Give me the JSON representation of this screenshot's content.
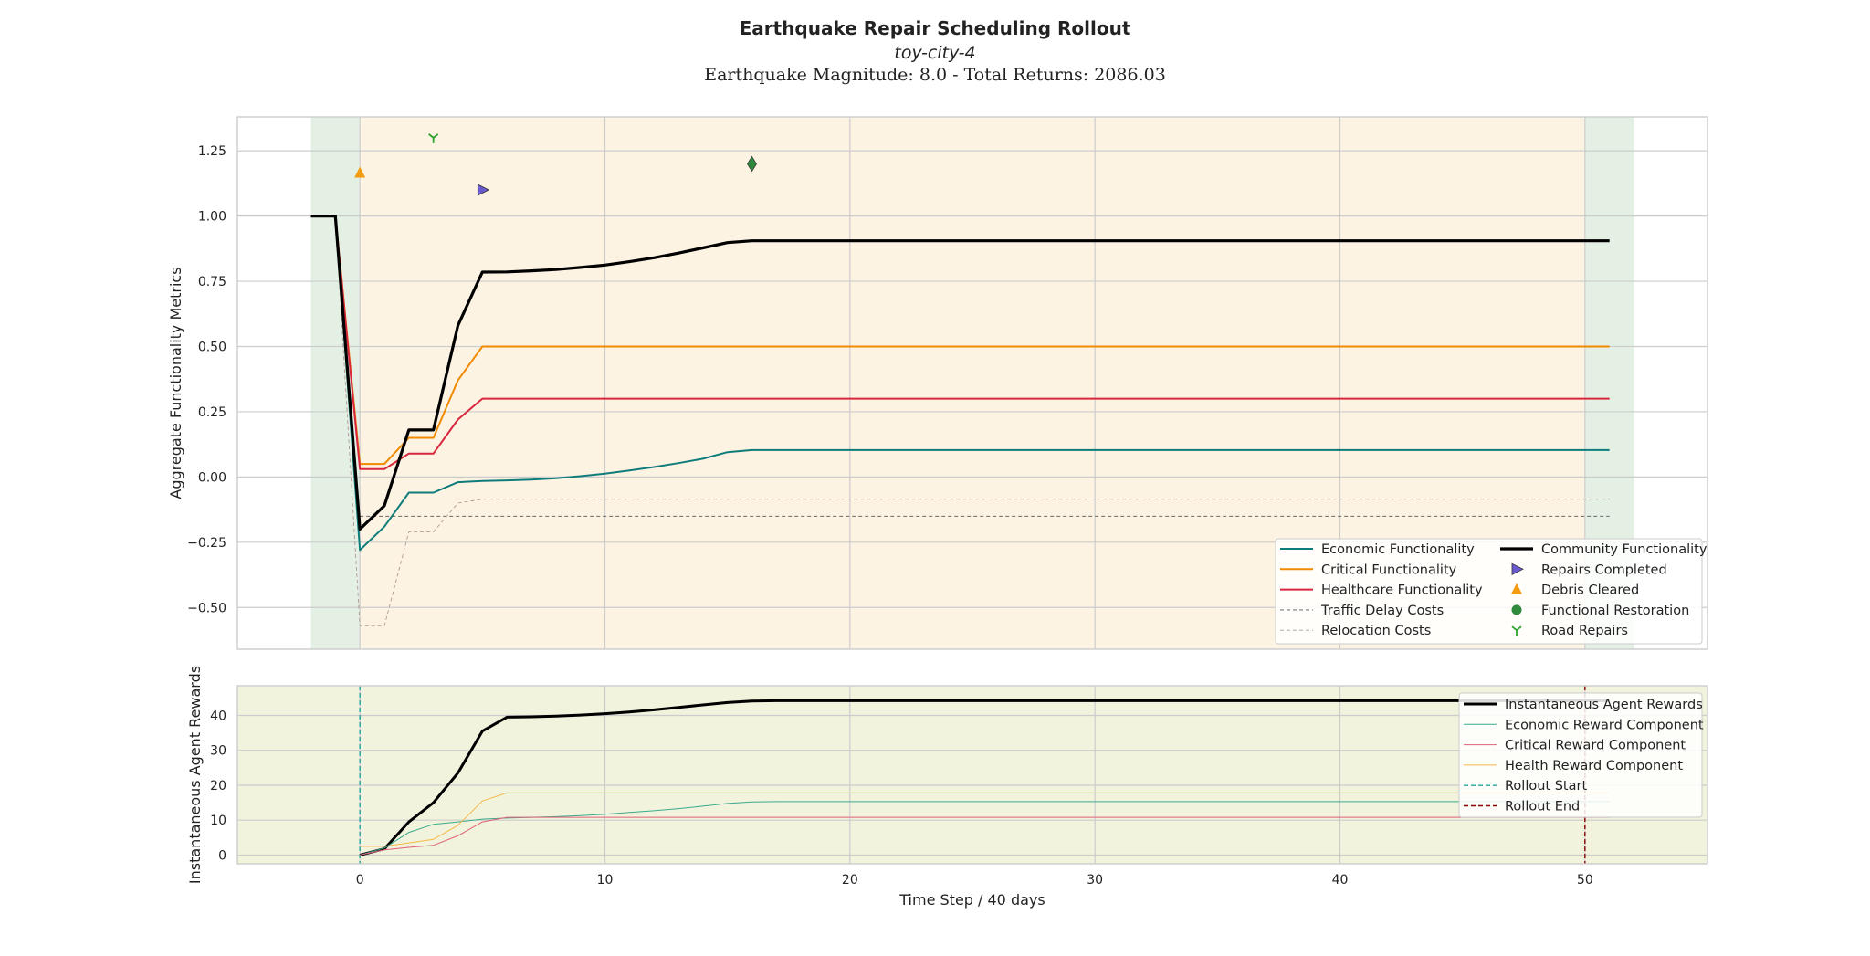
{
  "figure": {
    "title": "Earthquake Repair Scheduling Rollout",
    "subtitle": "toy-city-4",
    "subtitle2": "Earthquake Magnitude: 8.0 - Total Returns: 2086.03"
  },
  "colors": {
    "pre_band": "#e5f0e4",
    "rollout_band": "#fdf3e3",
    "lower_bg": "#f2f3dc",
    "grid": "#cccccc",
    "economic": "#0e7c7b",
    "critical": "#f08a00",
    "healthcare": "#d7263d",
    "community": "#000000",
    "traffic": "#555555",
    "relocation": "#b09a94",
    "repairs_marker": "#6a5acd",
    "debris_marker": "#f39c12",
    "restoration_marker": "#2e8b3e",
    "road_marker": "#2ca02c",
    "rollout_start": "#21a39a",
    "rollout_end": "#8b0000",
    "econ_reward": "#3aaa8e",
    "crit_reward": "#e0607a",
    "health_reward": "#f5b94a"
  },
  "chart_data": [
    {
      "type": "line",
      "ylabel": "Aggregate Functionality Metrics",
      "xlim": [
        -5,
        55
      ],
      "ylim": [
        -0.66,
        1.38
      ],
      "xticks": [
        0,
        10,
        20,
        30,
        40,
        50
      ],
      "yticks": [
        -0.5,
        -0.25,
        0.0,
        0.25,
        0.5,
        0.75,
        1.0,
        1.25
      ],
      "ytick_labels": [
        "−0.50",
        "−0.25",
        "0.00",
        "0.25",
        "0.50",
        "0.75",
        "1.00",
        "1.25"
      ],
      "shaded_regions": [
        {
          "from": -2,
          "to": 0,
          "kind": "pre"
        },
        {
          "from": 0,
          "to": 50,
          "kind": "rollout"
        },
        {
          "from": 50,
          "to": 52,
          "kind": "pre"
        }
      ],
      "series": [
        {
          "name": "Economic Functionality",
          "key": "economic",
          "width": 2,
          "points": [
            [
              -2,
              1.0
            ],
            [
              -1,
              1.0
            ],
            [
              0,
              -0.28
            ],
            [
              1,
              -0.19
            ],
            [
              2,
              -0.06
            ],
            [
              3,
              -0.06
            ],
            [
              4,
              -0.02
            ],
            [
              5,
              -0.015
            ],
            [
              6,
              -0.013
            ],
            [
              7,
              -0.01
            ],
            [
              8,
              -0.005
            ],
            [
              9,
              0.003
            ],
            [
              10,
              0.013
            ],
            [
              11,
              0.025
            ],
            [
              12,
              0.038
            ],
            [
              13,
              0.053
            ],
            [
              14,
              0.07
            ],
            [
              15,
              0.095
            ],
            [
              16,
              0.103
            ],
            [
              51,
              0.103
            ]
          ]
        },
        {
          "name": "Critical Functionality",
          "key": "critical",
          "width": 2,
          "points": [
            [
              -2,
              1.0
            ],
            [
              -1,
              1.0
            ],
            [
              0,
              0.05
            ],
            [
              1,
              0.05
            ],
            [
              2,
              0.15
            ],
            [
              3,
              0.15
            ],
            [
              4,
              0.37
            ],
            [
              5,
              0.5
            ],
            [
              51,
              0.5
            ]
          ]
        },
        {
          "name": "Healthcare Functionality",
          "key": "healthcare",
          "width": 2,
          "points": [
            [
              -2,
              1.0
            ],
            [
              -1,
              1.0
            ],
            [
              0,
              0.03
            ],
            [
              1,
              0.03
            ],
            [
              2,
              0.09
            ],
            [
              3,
              0.09
            ],
            [
              4,
              0.22
            ],
            [
              5,
              0.3
            ],
            [
              51,
              0.3
            ]
          ]
        },
        {
          "name": "Traffic Delay Costs",
          "key": "traffic",
          "width": 0.9,
          "dash": "4,3",
          "points": [
            [
              0,
              -0.15
            ],
            [
              51,
              -0.15
            ]
          ]
        },
        {
          "name": "Relocation Costs",
          "key": "relocation",
          "width": 0.9,
          "dash": "4,3",
          "points": [
            [
              -1,
              1.0
            ],
            [
              0,
              -0.57
            ],
            [
              1,
              -0.57
            ],
            [
              2,
              -0.21
            ],
            [
              3,
              -0.21
            ],
            [
              4,
              -0.1
            ],
            [
              5,
              -0.085
            ],
            [
              51,
              -0.085
            ]
          ]
        },
        {
          "name": "Community Functionality",
          "key": "community",
          "width": 3.2,
          "points": [
            [
              -2,
              1.0
            ],
            [
              -1,
              1.0
            ],
            [
              0,
              -0.2
            ],
            [
              1,
              -0.11
            ],
            [
              2,
              0.18
            ],
            [
              3,
              0.18
            ],
            [
              4,
              0.58
            ],
            [
              5,
              0.785
            ],
            [
              6,
              0.786
            ],
            [
              7,
              0.79
            ],
            [
              8,
              0.795
            ],
            [
              9,
              0.803
            ],
            [
              10,
              0.812
            ],
            [
              11,
              0.825
            ],
            [
              12,
              0.84
            ],
            [
              13,
              0.858
            ],
            [
              14,
              0.878
            ],
            [
              15,
              0.898
            ],
            [
              16,
              0.905
            ],
            [
              51,
              0.905
            ]
          ]
        }
      ],
      "markers": [
        {
          "name": "Repairs Completed",
          "key": "repairs_marker",
          "shape": "triangle-right",
          "points": [
            [
              5,
              1.1
            ]
          ]
        },
        {
          "name": "Debris Cleared",
          "key": "debris_marker",
          "shape": "triangle-up",
          "points": [
            [
              0,
              1.165
            ]
          ]
        },
        {
          "name": "Functional Restoration",
          "key": "restoration_marker",
          "shape": "diamond",
          "points": [
            [
              16,
              1.2
            ]
          ]
        },
        {
          "name": "Road Repairs",
          "key": "road_marker",
          "shape": "tri-y",
          "points": [
            [
              3,
              1.3
            ]
          ]
        }
      ],
      "legend": {
        "placement": "lower-right",
        "columns": [
          [
            "Economic Functionality",
            "Critical Functionality",
            "Healthcare Functionality",
            "Traffic Delay Costs",
            "Relocation Costs"
          ],
          [
            "Community Functionality",
            "Repairs Completed",
            "Debris Cleared",
            "Functional Restoration",
            "Road Repairs"
          ]
        ]
      }
    },
    {
      "type": "line",
      "xlabel": "Time Step / 40 days",
      "ylabel": "Instantaneous Agent Rewards",
      "xlim": [
        -5,
        55
      ],
      "ylim": [
        -2.5,
        48.5
      ],
      "xticks": [
        0,
        10,
        20,
        30,
        40,
        50
      ],
      "yticks": [
        0,
        10,
        20,
        30,
        40
      ],
      "ytick_labels": [
        "0",
        "10",
        "20",
        "30",
        "40"
      ],
      "series": [
        {
          "name": "Instantaneous Agent Rewards",
          "key": "community",
          "width": 3,
          "points": [
            [
              0,
              0
            ],
            [
              1,
              1.8
            ],
            [
              2,
              9.5
            ],
            [
              3,
              15
            ],
            [
              4,
              23.5
            ],
            [
              5,
              35.5
            ],
            [
              6,
              39.5
            ],
            [
              7,
              39.6
            ],
            [
              8,
              39.8
            ],
            [
              9,
              40.1
            ],
            [
              10,
              40.5
            ],
            [
              11,
              41.0
            ],
            [
              12,
              41.6
            ],
            [
              13,
              42.3
            ],
            [
              14,
              43.0
            ],
            [
              15,
              43.7
            ],
            [
              16,
              44.1
            ],
            [
              17,
              44.2
            ],
            [
              51,
              44.2
            ]
          ]
        },
        {
          "name": "Economic Reward Component",
          "key": "econ_reward",
          "width": 1,
          "points": [
            [
              0,
              0
            ],
            [
              1,
              2
            ],
            [
              2,
              6.5
            ],
            [
              3,
              8.8
            ],
            [
              4,
              9.5
            ],
            [
              5,
              10.3
            ],
            [
              6,
              10.6
            ],
            [
              7,
              10.8
            ],
            [
              8,
              11.0
            ],
            [
              9,
              11.3
            ],
            [
              10,
              11.7
            ],
            [
              11,
              12.2
            ],
            [
              12,
              12.7
            ],
            [
              13,
              13.3
            ],
            [
              14,
              14.0
            ],
            [
              15,
              14.8
            ],
            [
              16,
              15.2
            ],
            [
              17,
              15.3
            ],
            [
              51,
              15.3
            ]
          ]
        },
        {
          "name": "Critical Reward Component",
          "key": "crit_reward",
          "width": 1,
          "points": [
            [
              0,
              0
            ],
            [
              1,
              1.5
            ],
            [
              2,
              2.2
            ],
            [
              3,
              2.8
            ],
            [
              4,
              5.5
            ],
            [
              5,
              9.5
            ],
            [
              6,
              10.8
            ],
            [
              51,
              10.8
            ]
          ]
        },
        {
          "name": "Health Reward Component",
          "key": "health_reward",
          "width": 1,
          "points": [
            [
              0,
              2.5
            ],
            [
              1,
              2.5
            ],
            [
              2,
              3.5
            ],
            [
              3,
              4.5
            ],
            [
              4,
              8.5
            ],
            [
              5,
              15.5
            ],
            [
              6,
              17.8
            ],
            [
              51,
              17.8
            ]
          ]
        }
      ],
      "vlines": [
        {
          "name": "Rollout Start",
          "key": "rollout_start",
          "x": 0
        },
        {
          "name": "Rollout End",
          "key": "rollout_end",
          "x": 50
        }
      ],
      "legend": {
        "placement": "upper-right",
        "items": [
          "Instantaneous Agent Rewards",
          "Economic Reward Component",
          "Critical Reward Component",
          "Health Reward Component",
          "Rollout Start",
          "Rollout End"
        ]
      }
    }
  ]
}
